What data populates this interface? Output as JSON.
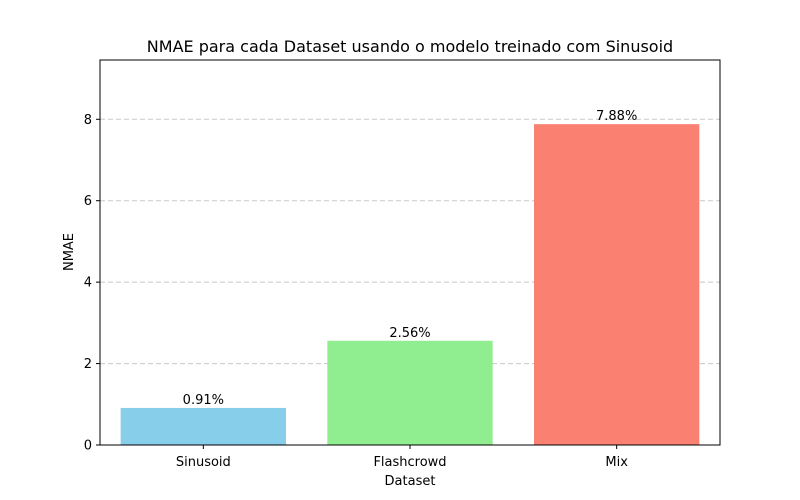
{
  "chart_data": {
    "type": "bar",
    "title": "NMAE para cada Dataset usando o modelo treinado com Sinusoid",
    "xlabel": "Dataset",
    "ylabel": "NMAE",
    "categories": [
      "Sinusoid",
      "Flashcrowd",
      "Mix"
    ],
    "values": [
      0.91,
      2.56,
      7.88
    ],
    "value_labels": [
      "0.91%",
      "2.56%",
      "7.88%"
    ],
    "colors": [
      "#87CEEB",
      "#90EE90",
      "#FA8072"
    ],
    "ylim": [
      0,
      9.456
    ],
    "yticks": [
      0,
      2,
      4,
      6,
      8
    ],
    "ytick_labels": [
      "0",
      "2",
      "4",
      "6",
      "8"
    ],
    "grid": {
      "axis": "y",
      "style": "dashed"
    },
    "legend": "none"
  }
}
